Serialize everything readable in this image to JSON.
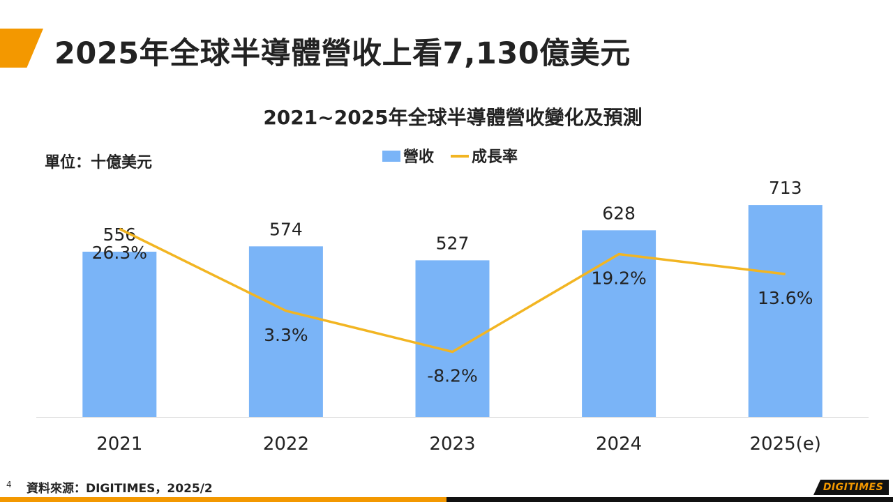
{
  "slide": {
    "title": "2025年全球半導體營收上看7,130億美元",
    "page_number": "4",
    "source": "資料來源：DIGITIMES，2025/2",
    "logo_text": "DIGITIMES"
  },
  "colors": {
    "accent": "#f39800",
    "bar": "#7ab4f7",
    "line": "#f2b522",
    "axis": "#d9d9d9"
  },
  "chart_data": {
    "type": "bar",
    "title": "2021~2025年全球半導體營收變化及預測",
    "unit_label": "單位：十億美元",
    "categories": [
      "2021",
      "2022",
      "2023",
      "2024",
      "2025(e)"
    ],
    "series": [
      {
        "name": "營收",
        "type": "bar",
        "values": [
          556,
          574,
          527,
          628,
          713
        ],
        "labels": [
          "556",
          "574",
          "527",
          "628",
          "713"
        ]
      },
      {
        "name": "成長率",
        "type": "line",
        "values": [
          26.3,
          3.3,
          -8.2,
          19.2,
          13.6
        ],
        "labels": [
          "26.3%",
          "3.3%",
          "-8.2%",
          "19.2%",
          "13.6%"
        ]
      }
    ],
    "ylim_bar": [
      0,
      1000
    ],
    "ylim_line": [
      -30,
      60
    ],
    "legend_position": "top-center",
    "grid": false
  }
}
